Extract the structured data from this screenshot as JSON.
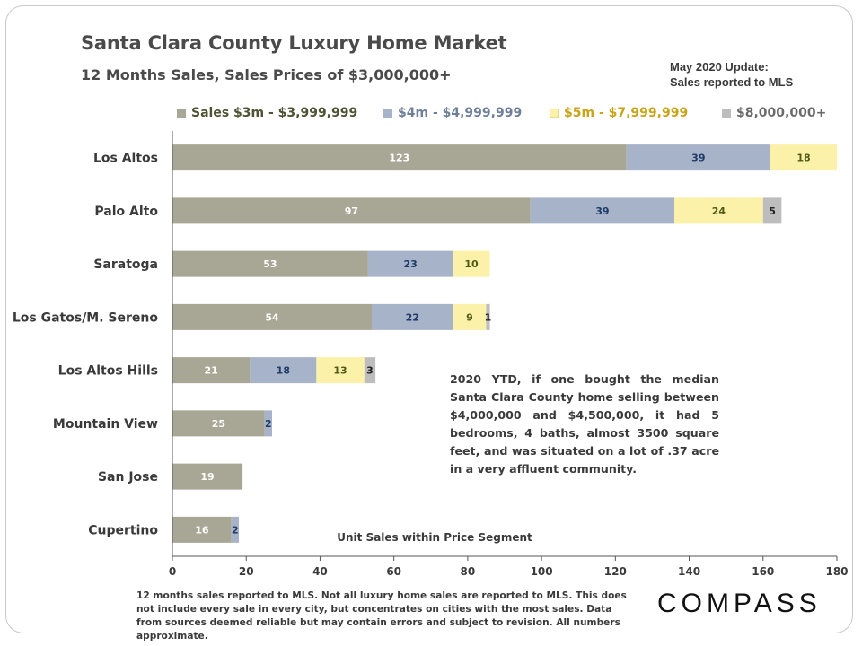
{
  "header": {
    "title": "Santa Clara County Luxury Home Market",
    "subtitle": "12 Months  Sales, Sales Prices of $3,000,000+",
    "update_note": "May 2020 Update:\nSales reported to MLS"
  },
  "legend": [
    {
      "label": "Sales $3m - $3,999,999",
      "swatch_color": "#a8a795",
      "text_color": "#4f5233"
    },
    {
      "label": "$4m - $4,999,999",
      "swatch_color": "#a7b3c8",
      "text_color": "#6e7f99"
    },
    {
      "label": "$5m - $7,999,999",
      "swatch_color": "#fbf1a9",
      "text_color": "#c9a419"
    },
    {
      "label": "$8,000,000+",
      "swatch_color": "#bdbdbd",
      "text_color": "#6a6a6a"
    }
  ],
  "chart_data": {
    "type": "bar",
    "orientation": "horizontal",
    "stacked": true,
    "categories": [
      "Los Altos",
      "Palo Alto",
      "Saratoga",
      "Los Gatos/M. Sereno",
      "Los Altos Hills",
      "Mountain View",
      "San Jose",
      "Cupertino"
    ],
    "series": [
      {
        "name": "Sales $3m - $3,999,999",
        "color": "#a8a795",
        "label_color": "#ffffff",
        "values": [
          123,
          97,
          53,
          54,
          21,
          25,
          19,
          16
        ]
      },
      {
        "name": "$4m - $4,999,999",
        "color": "#a7b3c8",
        "label_color": "#1f3a66",
        "values": [
          39,
          39,
          23,
          22,
          18,
          2,
          null,
          2
        ]
      },
      {
        "name": "$5m - $7,999,999",
        "color": "#fbf1a9",
        "label_color": "#4f5a16",
        "values": [
          18,
          24,
          10,
          9,
          13,
          null,
          null,
          null
        ]
      },
      {
        "name": "$8,000,000+",
        "color": "#bdbdbd",
        "label_color": "#222222",
        "values": [
          null,
          5,
          null,
          1,
          3,
          null,
          null,
          null
        ]
      }
    ],
    "xlim": [
      0,
      180
    ],
    "xticks": [
      0,
      20,
      40,
      60,
      80,
      100,
      120,
      140,
      160,
      180
    ],
    "xlabel": "Unit Sales within Price Segment",
    "grid": false,
    "legend_position": "top"
  },
  "annotation": "2020 YTD, if one bought the median Santa Clara County home selling between $4,000,000 and $4,500,000, it had 5 bedrooms, 4 baths, almost 3500 square feet, and was situated on a lot of .37 acre in a very affluent community.",
  "footer": {
    "note": "12 months sales reported to MLS. Not all luxury home sales are reported to MLS. This does not include every sale in every city, but concentrates on cities with the most sales. Data from sources deemed reliable but may contain errors and subject to revision. All numbers approximate.",
    "logo_text": "COMPASS"
  }
}
